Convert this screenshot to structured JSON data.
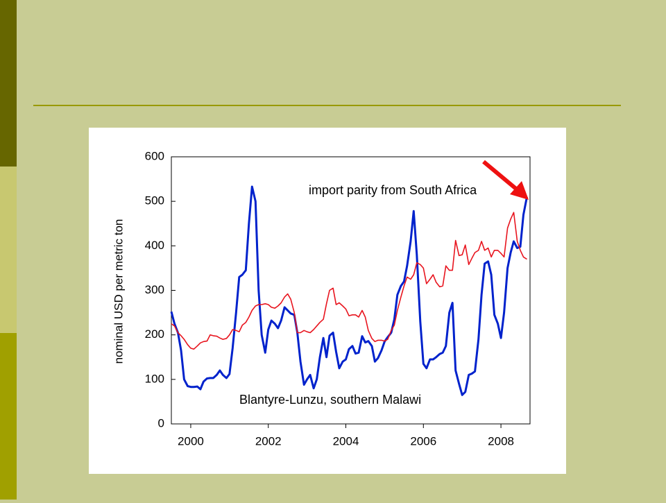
{
  "chart_data": {
    "type": "line",
    "ylabel": "nominal USD per metric ton",
    "xlim": [
      2000,
      2009.25
    ],
    "xticks": [
      {
        "value": 2000.5,
        "label": "2000"
      },
      {
        "value": 2002.5,
        "label": "2002"
      },
      {
        "value": 2004.5,
        "label": "2004"
      },
      {
        "value": 2006.5,
        "label": "2006"
      },
      {
        "value": 2008.5,
        "label": "2008"
      }
    ],
    "ylim": [
      0,
      600
    ],
    "yticks": [
      0,
      100,
      200,
      300,
      400,
      500,
      600
    ],
    "grid": false,
    "x": [
      2000,
      2000.08,
      2000.17,
      2000.25,
      2000.33,
      2000.42,
      2000.5,
      2000.58,
      2000.67,
      2000.75,
      2000.83,
      2000.92,
      2001,
      2001.08,
      2001.17,
      2001.25,
      2001.33,
      2001.42,
      2001.5,
      2001.58,
      2001.67,
      2001.75,
      2001.83,
      2001.92,
      2002,
      2002.08,
      2002.17,
      2002.25,
      2002.33,
      2002.42,
      2002.5,
      2002.58,
      2002.67,
      2002.75,
      2002.83,
      2002.92,
      2003,
      2003.08,
      2003.17,
      2003.25,
      2003.33,
      2003.42,
      2003.5,
      2003.58,
      2003.67,
      2003.75,
      2003.83,
      2003.92,
      2004,
      2004.08,
      2004.17,
      2004.25,
      2004.33,
      2004.42,
      2004.5,
      2004.58,
      2004.67,
      2004.75,
      2004.83,
      2004.92,
      2005,
      2005.08,
      2005.17,
      2005.25,
      2005.33,
      2005.42,
      2005.5,
      2005.58,
      2005.67,
      2005.75,
      2005.83,
      2005.92,
      2006,
      2006.08,
      2006.17,
      2006.25,
      2006.33,
      2006.42,
      2006.5,
      2006.58,
      2006.67,
      2006.75,
      2006.83,
      2006.92,
      2007,
      2007.08,
      2007.17,
      2007.25,
      2007.33,
      2007.42,
      2007.5,
      2007.58,
      2007.67,
      2007.75,
      2007.83,
      2007.92,
      2008,
      2008.08,
      2008.17,
      2008.25,
      2008.33,
      2008.42,
      2008.5,
      2008.58,
      2008.67,
      2008.75,
      2008.83,
      2008.92,
      2009,
      2009.08,
      2009.17
    ],
    "series": [
      {
        "name": "Blantyre-Lunzu, southern Malawi",
        "color": "#0022cc",
        "values": [
          252,
          225,
          205,
          165,
          100,
          85,
          83,
          83,
          84,
          78,
          95,
          102,
          103,
          103,
          110,
          120,
          110,
          103,
          112,
          170,
          250,
          330,
          335,
          345,
          450,
          533,
          500,
          300,
          200,
          160,
          212,
          232,
          225,
          215,
          232,
          262,
          255,
          248,
          245,
          205,
          140,
          88,
          100,
          110,
          80,
          100,
          150,
          193,
          150,
          198,
          205,
          162,
          125,
          140,
          145,
          168,
          175,
          158,
          160,
          197,
          183,
          186,
          175,
          140,
          148,
          165,
          185,
          195,
          205,
          235,
          290,
          310,
          320,
          355,
          410,
          478,
          380,
          230,
          135,
          125,
          145,
          145,
          150,
          157,
          160,
          175,
          250,
          272,
          120,
          90,
          65,
          72,
          110,
          113,
          118,
          190,
          290,
          360,
          365,
          335,
          245,
          225,
          193,
          250,
          350,
          385,
          410,
          395,
          398,
          470,
          510
        ]
      },
      {
        "name": "import parity from South Africa",
        "color": "#e8141e",
        "values": [
          225,
          220,
          205,
          198,
          190,
          178,
          170,
          168,
          175,
          182,
          185,
          186,
          200,
          198,
          197,
          193,
          190,
          192,
          200,
          212,
          210,
          207,
          222,
          228,
          240,
          255,
          265,
          268,
          268,
          270,
          268,
          262,
          260,
          265,
          272,
          285,
          292,
          280,
          250,
          205,
          205,
          210,
          207,
          205,
          212,
          220,
          228,
          235,
          270,
          300,
          305,
          268,
          272,
          265,
          258,
          243,
          245,
          245,
          240,
          255,
          240,
          210,
          192,
          185,
          188,
          188,
          186,
          190,
          210,
          222,
          255,
          285,
          310,
          330,
          325,
          335,
          362,
          358,
          350,
          315,
          325,
          335,
          318,
          308,
          310,
          355,
          345,
          345,
          412,
          378,
          380,
          402,
          358,
          372,
          385,
          390,
          410,
          390,
          395,
          375,
          390,
          390,
          383,
          375,
          440,
          460,
          475,
          410,
          390,
          375,
          370
        ]
      }
    ]
  }
}
